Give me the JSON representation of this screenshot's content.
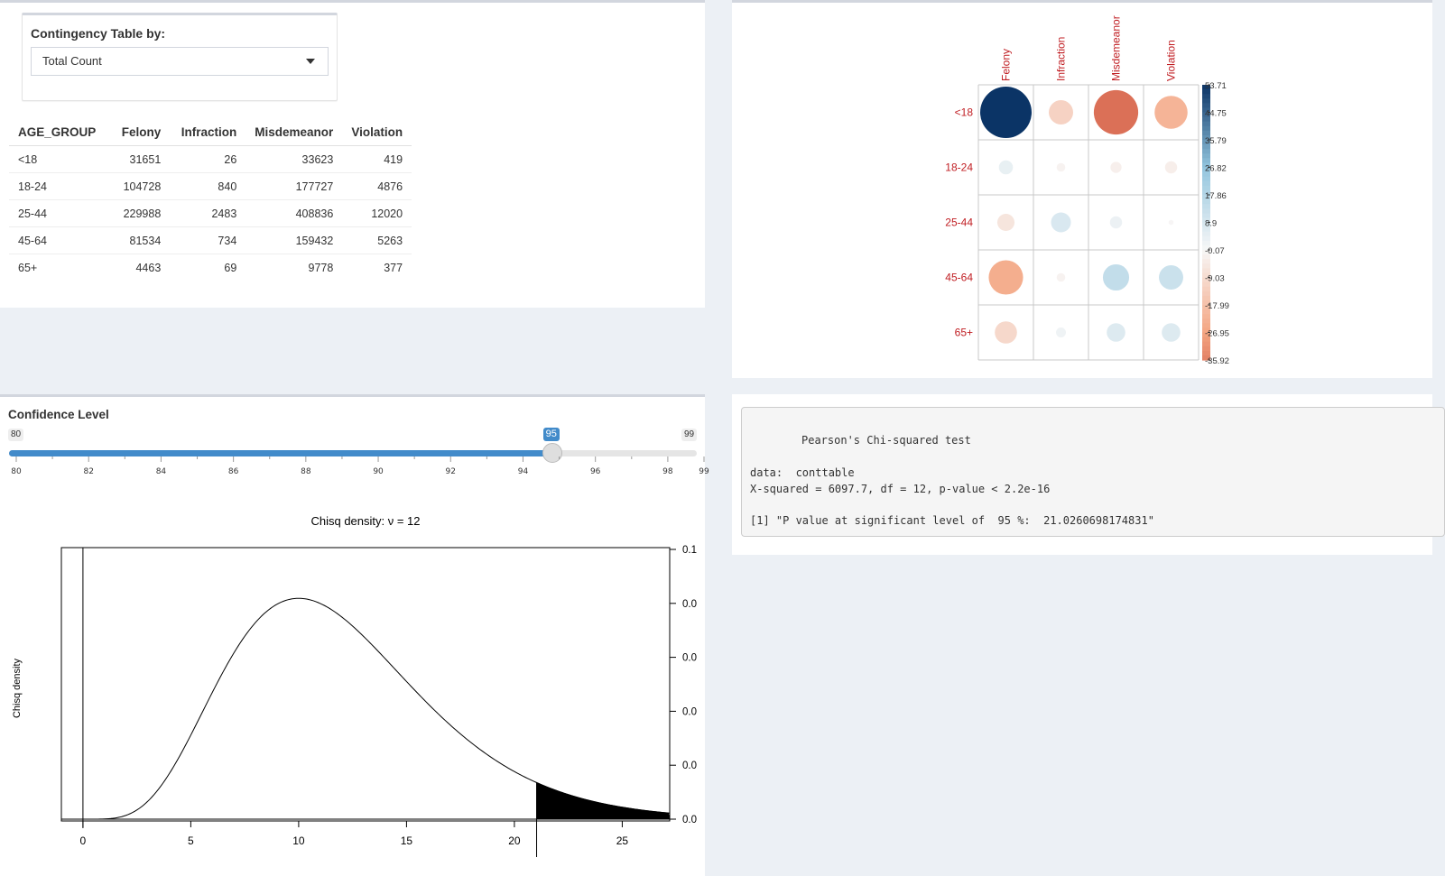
{
  "contingency": {
    "label": "Contingency Table by:",
    "selected": "Total Count"
  },
  "table": {
    "headers": [
      "AGE_GROUP",
      "Felony",
      "Infraction",
      "Misdemeanor",
      "Violation"
    ],
    "rows": [
      [
        "<18",
        "31651",
        "26",
        "33623",
        "419"
      ],
      [
        "18-24",
        "104728",
        "840",
        "177727",
        "4876"
      ],
      [
        "25-44",
        "229988",
        "2483",
        "408836",
        "12020"
      ],
      [
        "45-64",
        "81534",
        "734",
        "159432",
        "5263"
      ],
      [
        "65+",
        "4463",
        "69",
        "9778",
        "377"
      ]
    ]
  },
  "corrplot": {
    "columns": [
      "Felony",
      "Infraction",
      "Misdemeanor",
      "Violation"
    ],
    "rows": [
      "<18",
      "18-24",
      "25-44",
      "45-64",
      "65+"
    ],
    "residuals": [
      [
        53.71,
        -12,
        -40,
        -22
      ],
      [
        4,
        -1.5,
        -2.5,
        -3
      ],
      [
        -6,
        8,
        3,
        -0.5
      ],
      [
        -24,
        -1.5,
        14,
        12
      ],
      [
        -10,
        2,
        7,
        7
      ]
    ],
    "colorbar_ticks": [
      "53.71",
      "44.75",
      "35.79",
      "26.82",
      "17.86",
      "8.9",
      "-0.07",
      "-9.03",
      "-17.99",
      "-26.95",
      "-35.92"
    ],
    "label_color": "#c01d22",
    "positive_color": "#0b3466",
    "negative_color": "#c0392b"
  },
  "slider": {
    "label": "Confidence Level",
    "min": 80,
    "max": 99,
    "min_label": "80",
    "max_label": "99",
    "value": 95,
    "value_label": "95",
    "ticks": [
      "80",
      "82",
      "84",
      "86",
      "88",
      "90",
      "92",
      "94",
      "96",
      "98",
      "99"
    ],
    "accent": "#428bca"
  },
  "chisq_output": {
    "title": "Pearson's Chi-squared test",
    "data_line": "data:  conttable",
    "stat_line": "X-squared = 6097.7, df = 12, p-value < 2.2e-16",
    "result_line": "[1] \"P value at significant level of  95 %:  21.0260698174831\""
  },
  "chart_data": {
    "type": "area",
    "title": "Chisq density:  ν = 12",
    "ylabel": "Chisq density",
    "xlabel": "",
    "df": 12,
    "critical_value": 21.03,
    "xlim": [
      -1,
      27.2
    ],
    "ylim": [
      0,
      0.1
    ],
    "x_ticks": [
      "0",
      "5",
      "10",
      "15",
      "20",
      "25"
    ],
    "y_ticks": [
      "0.1",
      "0.0",
      "0.0",
      "0.0",
      "0.0",
      "0.0"
    ]
  }
}
